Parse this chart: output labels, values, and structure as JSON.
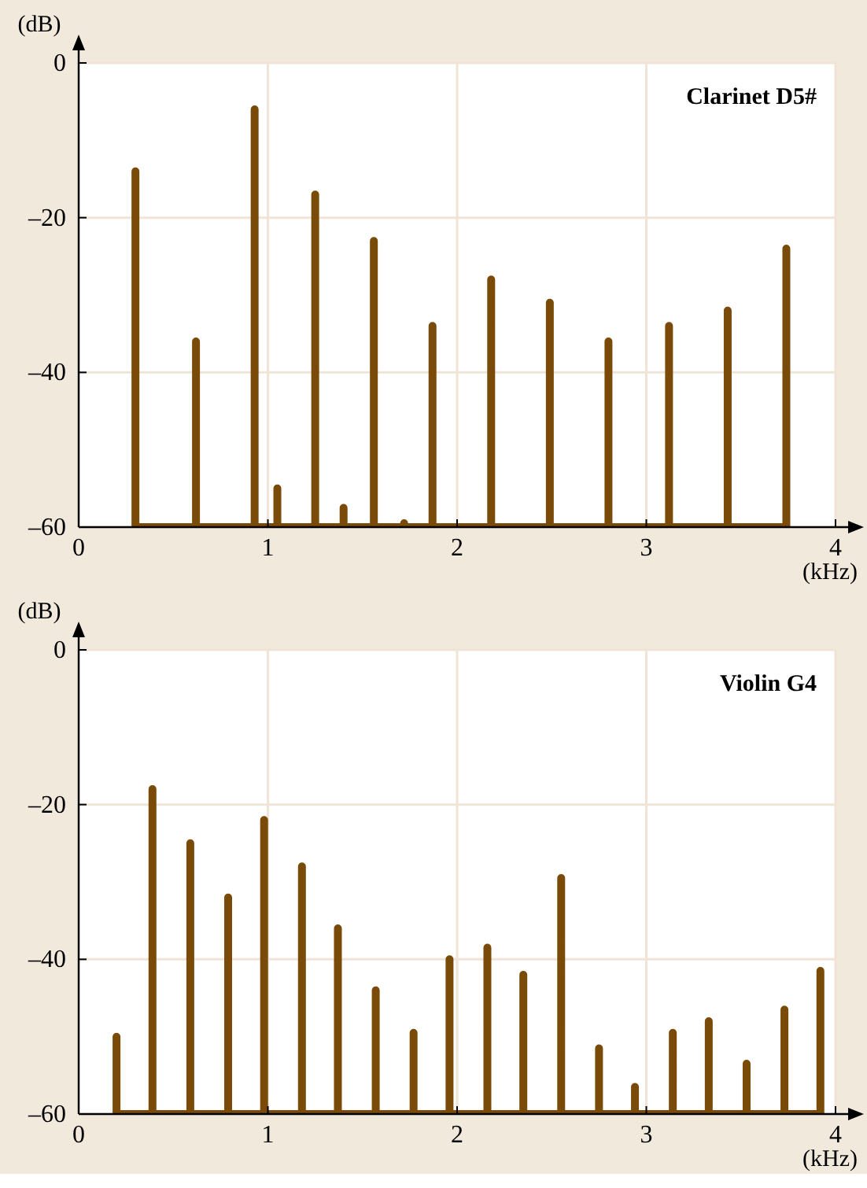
{
  "chart_data": [
    {
      "type": "line",
      "title": "Clarinet D5#",
      "xlabel": "(kHz)",
      "ylabel": "(dB)",
      "xlim": [
        0,
        4
      ],
      "xticks": [
        0,
        1,
        2,
        3,
        4
      ],
      "ylim": [
        -60,
        0
      ],
      "yticks": [
        0,
        {
          "value": -20,
          "label": "–20"
        },
        {
          "value": -40,
          "label": "–40"
        },
        {
          "value": -60,
          "label": "–60"
        }
      ],
      "grid": true,
      "line_style": "solid",
      "series": [
        {
          "color": "#7a4a08",
          "x": [
            0.3,
            0.3,
            0.3,
            0.62,
            0.62,
            0.62,
            0.93,
            0.93,
            0.93,
            1.05,
            1.05,
            1.05,
            1.25,
            1.25,
            1.25,
            1.4,
            1.4,
            1.4,
            1.56,
            1.56,
            1.56,
            1.72,
            1.72,
            1.72,
            1.87,
            1.87,
            1.87,
            2.18,
            2.18,
            2.18,
            2.49,
            2.49,
            2.49,
            2.8,
            2.8,
            2.8,
            3.12,
            3.12,
            3.12,
            3.43,
            3.43,
            3.43,
            3.74,
            3.74,
            3.74
          ],
          "values": [
            -60,
            -14,
            -60,
            -60,
            -36,
            -60,
            -60,
            -6,
            -60,
            -60,
            -55,
            -60,
            -60,
            -17,
            -60,
            -60,
            -57.5,
            -60,
            -60,
            -23,
            -60,
            -60,
            -59.5,
            -60,
            -60,
            -34,
            -60,
            -60,
            -28,
            -60,
            -60,
            -31,
            -60,
            -60,
            -36,
            -60,
            -60,
            -34,
            -60,
            -60,
            -32,
            -60,
            -60,
            -24,
            -60
          ]
        }
      ]
    },
    {
      "type": "line",
      "title": "Violin G4",
      "xlabel": "(kHz)",
      "ylabel": "(dB)",
      "xlim": [
        0,
        4
      ],
      "xticks": [
        0,
        1,
        2,
        3,
        4
      ],
      "ylim": [
        -60,
        0
      ],
      "yticks": [
        0,
        {
          "value": -20,
          "label": "–20"
        },
        {
          "value": -40,
          "label": "–40"
        },
        {
          "value": -60,
          "label": "–60"
        }
      ],
      "grid": true,
      "line_style": "solid",
      "series": [
        {
          "color": "#7a4a08",
          "x": [
            0.2,
            0.2,
            0.2,
            0.39,
            0.39,
            0.39,
            0.59,
            0.59,
            0.59,
            0.79,
            0.79,
            0.79,
            0.98,
            0.98,
            0.98,
            1.18,
            1.18,
            1.18,
            1.37,
            1.37,
            1.37,
            1.57,
            1.57,
            1.57,
            1.77,
            1.77,
            1.77,
            1.96,
            1.96,
            1.96,
            2.16,
            2.16,
            2.16,
            2.35,
            2.35,
            2.35,
            2.55,
            2.55,
            2.55,
            2.75,
            2.75,
            2.75,
            2.94,
            2.94,
            2.94,
            3.14,
            3.14,
            3.14,
            3.33,
            3.33,
            3.33,
            3.53,
            3.53,
            3.53,
            3.73,
            3.73,
            3.73,
            3.92,
            3.92,
            3.92
          ],
          "values": [
            -60,
            -50,
            -60,
            -60,
            -18,
            -60,
            -60,
            -25,
            -60,
            -60,
            -32,
            -60,
            -60,
            -22,
            -60,
            -60,
            -28,
            -60,
            -60,
            -36,
            -60,
            -60,
            -44,
            -60,
            -60,
            -49.5,
            -60,
            -60,
            -40,
            -60,
            -60,
            -38.5,
            -60,
            -60,
            -42,
            -60,
            -60,
            -29.5,
            -60,
            -60,
            -51.5,
            -60,
            -60,
            -56.5,
            -60,
            -60,
            -49.5,
            -60,
            -60,
            -48,
            -60,
            -60,
            -53.5,
            -60,
            -60,
            -46.5,
            -60,
            -60,
            -41.5,
            -60
          ]
        }
      ]
    }
  ]
}
